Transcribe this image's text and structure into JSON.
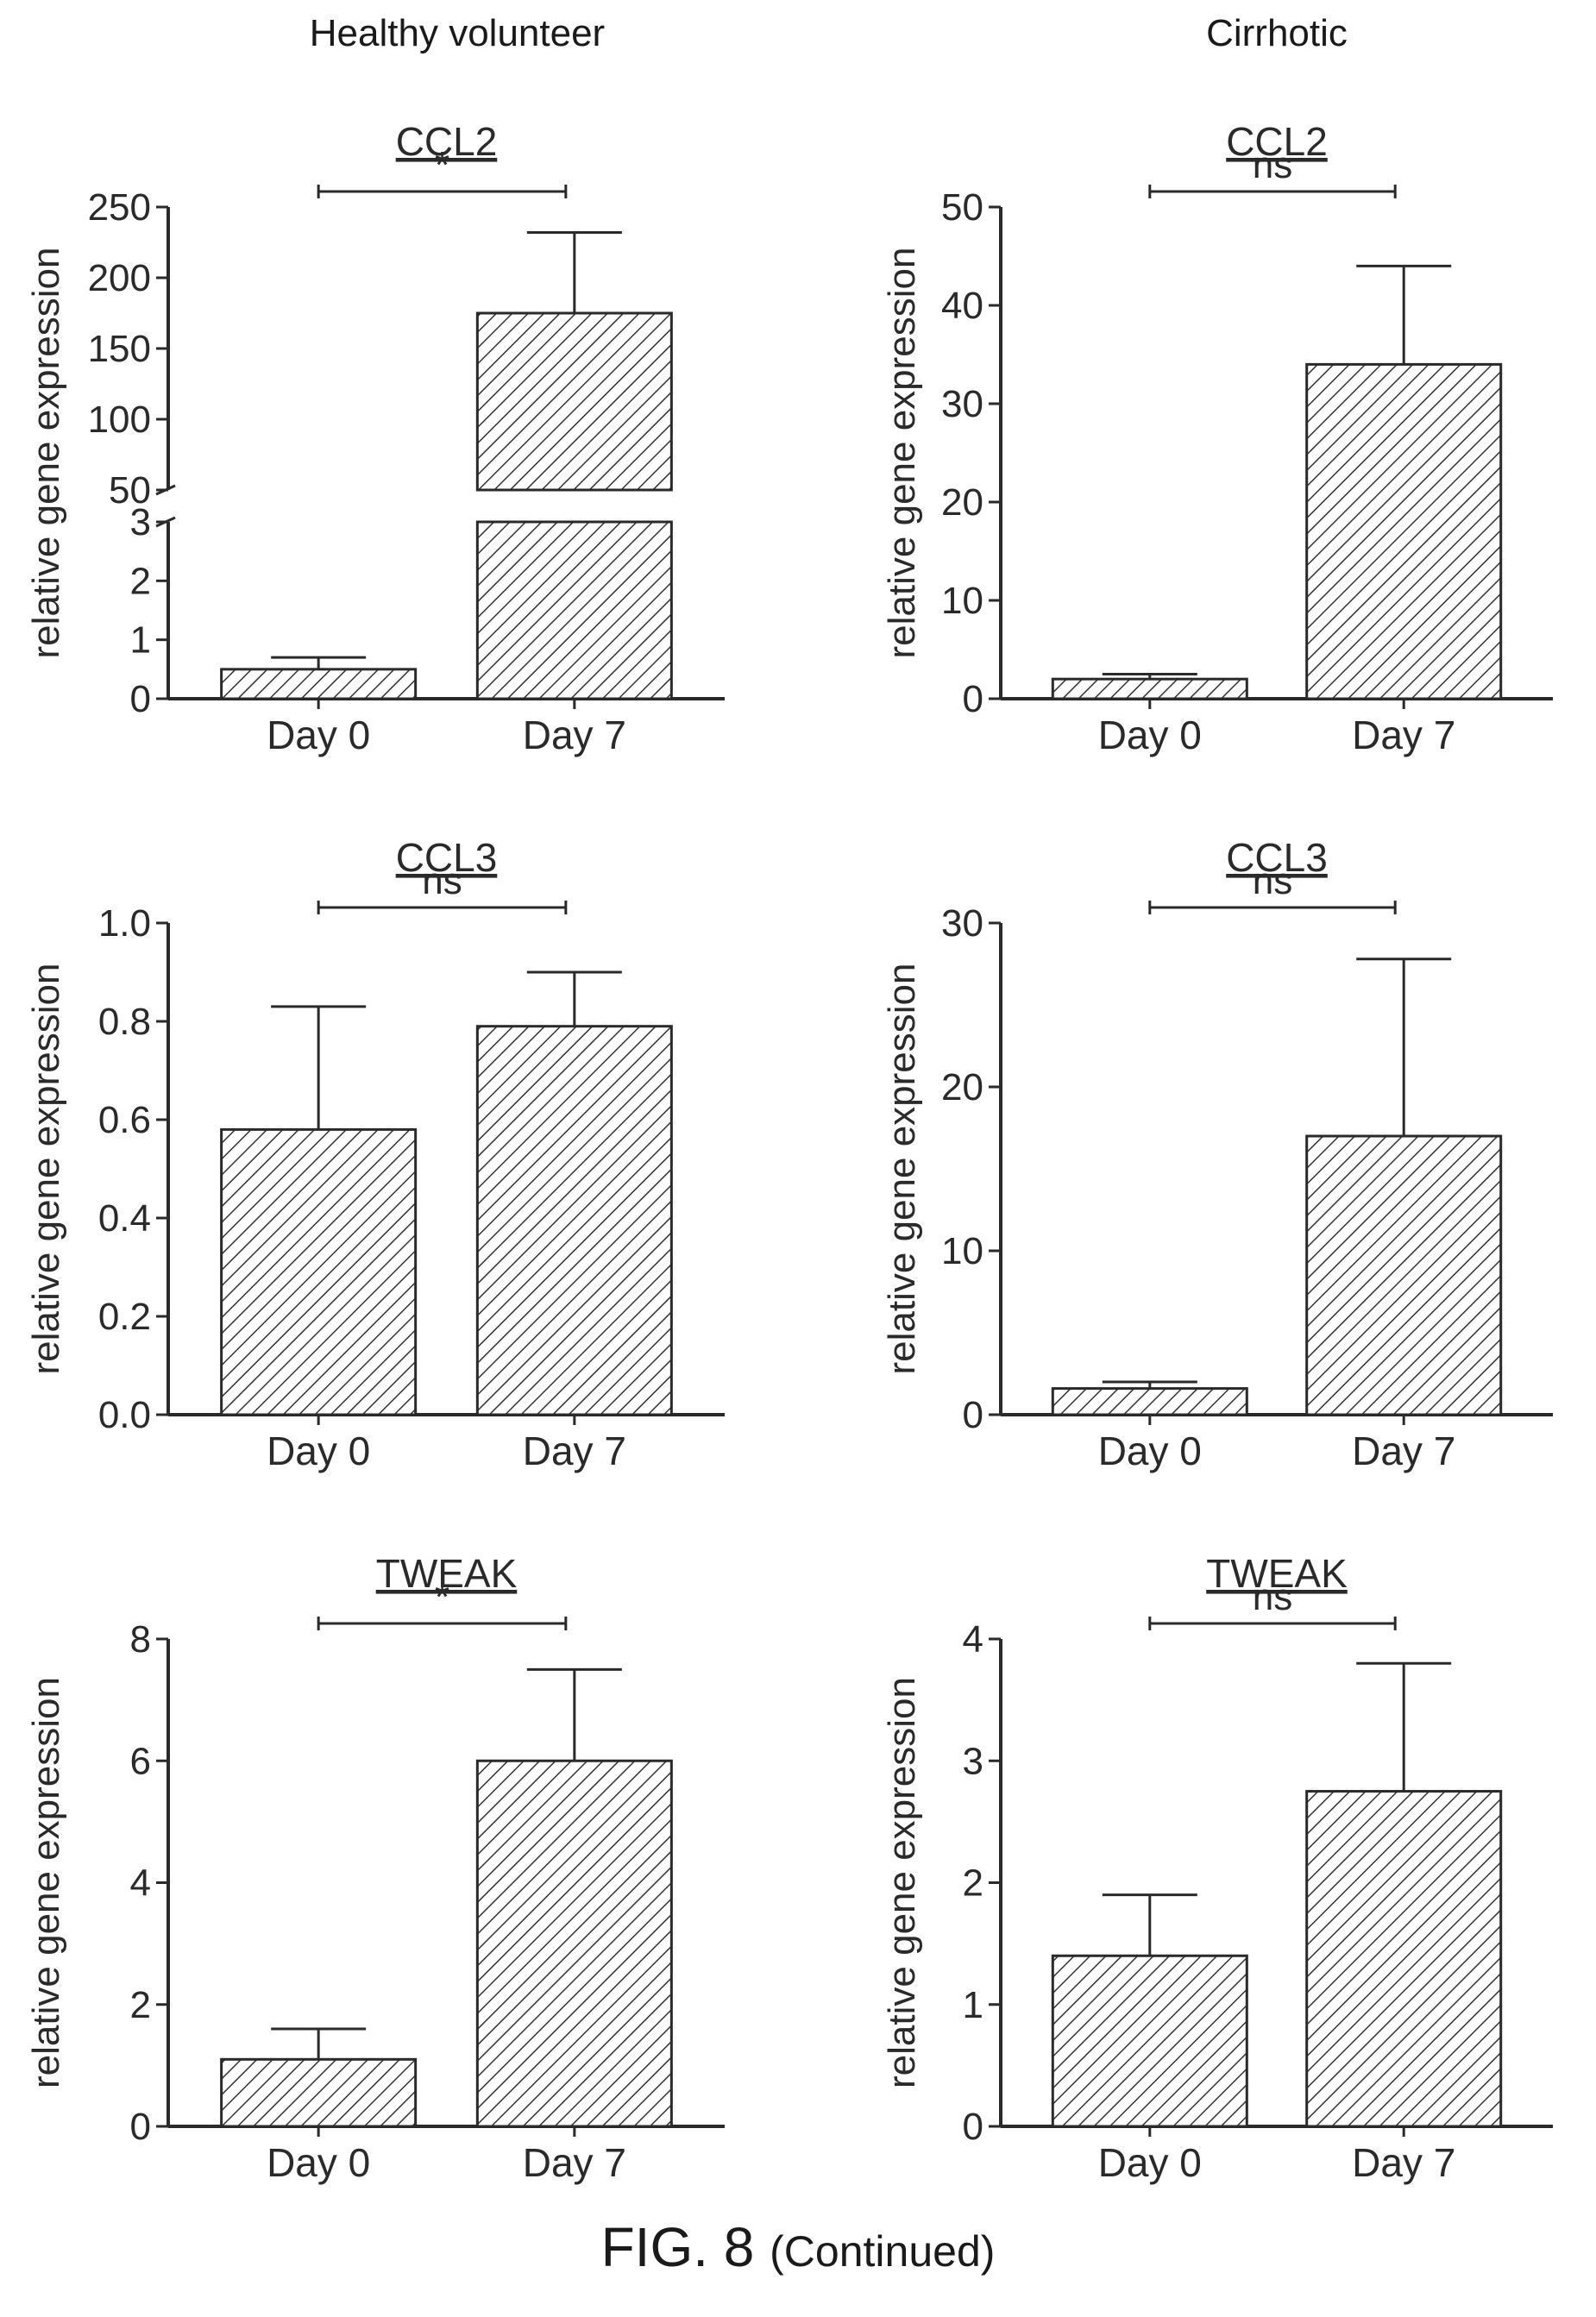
{
  "groups": [
    "Healthy volunteer",
    "Cirrhotic"
  ],
  "caption": {
    "main": "FIG. 8",
    "sub": "(Continued)"
  },
  "chart_data": [
    {
      "type": "bar",
      "title": "CCL2",
      "group": "Healthy volunteer",
      "ylabel": "relative gene expression",
      "categories": [
        "Day 0",
        "Day 7"
      ],
      "values": [
        0.5,
        175
      ],
      "errors_upper": [
        0.7,
        232
      ],
      "ylim": [
        0,
        250
      ],
      "axis_break": {
        "lower": [
          0,
          3
        ],
        "upper": [
          50,
          250
        ]
      },
      "lower_ticks": [
        0,
        1,
        2,
        3
      ],
      "upper_ticks": [
        50,
        100,
        150,
        200,
        250
      ],
      "significance": "*",
      "pattern": "diagonal hatch"
    },
    {
      "type": "bar",
      "title": "CCL2",
      "group": "Cirrhotic",
      "ylabel": "relative gene expression",
      "categories": [
        "Day 0",
        "Day 7"
      ],
      "values": [
        2,
        34
      ],
      "errors_upper": [
        2.5,
        44
      ],
      "ylim": [
        0,
        50
      ],
      "ticks": [
        0,
        10,
        20,
        30,
        40,
        50
      ],
      "significance": "ns",
      "pattern": "diagonal hatch"
    },
    {
      "type": "bar",
      "title": "CCL3",
      "group": "Healthy volunteer",
      "ylabel": "relative gene expression",
      "categories": [
        "Day 0",
        "Day 7"
      ],
      "values": [
        0.58,
        0.79
      ],
      "errors_upper": [
        0.83,
        0.9
      ],
      "ylim": [
        0,
        1.0
      ],
      "ticks": [
        "0.0",
        "0.2",
        "0.4",
        "0.6",
        "0.8",
        "1.0"
      ],
      "significance": "ns",
      "pattern": "diagonal hatch"
    },
    {
      "type": "bar",
      "title": "CCL3",
      "group": "Cirrhotic",
      "ylabel": "relative gene expression",
      "categories": [
        "Day 0",
        "Day 7"
      ],
      "values": [
        1.6,
        17
      ],
      "errors_upper": [
        2.0,
        27.8
      ],
      "ylim": [
        0,
        30
      ],
      "ticks": [
        0,
        10,
        20,
        30
      ],
      "significance": "ns",
      "pattern": "diagonal hatch"
    },
    {
      "type": "bar",
      "title": "TWEAK",
      "group": "Healthy volunteer",
      "ylabel": "relative gene expression",
      "categories": [
        "Day 0",
        "Day 7"
      ],
      "values": [
        1.1,
        6.0
      ],
      "errors_upper": [
        1.6,
        7.5
      ],
      "ylim": [
        0,
        8
      ],
      "ticks": [
        0,
        2,
        4,
        6,
        8
      ],
      "significance": "*",
      "pattern": "diagonal hatch"
    },
    {
      "type": "bar",
      "title": "TWEAK",
      "group": "Cirrhotic",
      "ylabel": "relative gene expression",
      "categories": [
        "Day 0",
        "Day 7"
      ],
      "values": [
        1.4,
        2.75
      ],
      "errors_upper": [
        1.9,
        3.8
      ],
      "ylim": [
        0,
        4
      ],
      "ticks": [
        0,
        1,
        2,
        3,
        4
      ],
      "significance": "ns",
      "pattern": "diagonal hatch"
    }
  ]
}
